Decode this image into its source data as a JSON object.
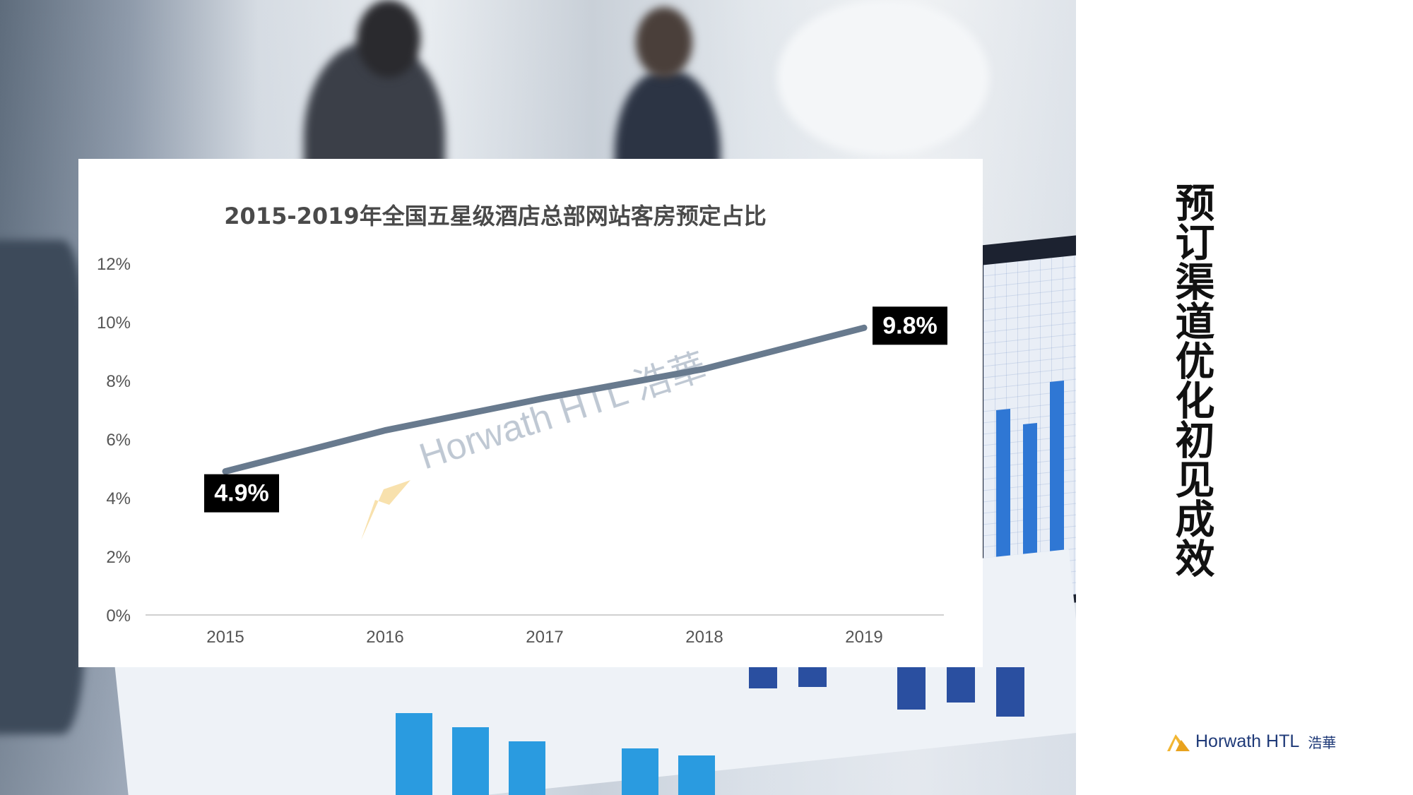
{
  "slide": {
    "side_title": "预订渠道优化初见成效",
    "footer": {
      "brand": "Horwath HTL",
      "brand_cn": "浩華"
    },
    "watermark": "Horwath HTL 浩華"
  },
  "colors": {
    "line": "#687a8e",
    "label_bg": "#000000",
    "label_text": "#ffffff",
    "title_text": "#4a4a4a",
    "axis_text": "#555555",
    "axis_line": "#d0d0d0",
    "logo_gold": "#f2b632",
    "logo_blue": "#1f3a78"
  },
  "chart_data": {
    "type": "line",
    "title": "2015-2019年全国五星级酒店总部网站客房预定占比",
    "categories": [
      "2015",
      "2016",
      "2017",
      "2018",
      "2019"
    ],
    "series": [
      {
        "values": [
          4.9,
          6.3,
          7.4,
          8.4,
          9.8
        ]
      }
    ],
    "data_labels": [
      {
        "index": 0,
        "text": "4.9%"
      },
      {
        "index": 4,
        "text": "9.8%"
      }
    ],
    "ylim": [
      0,
      12
    ],
    "yticks": [
      "0%",
      "2%",
      "4%",
      "6%",
      "8%",
      "10%",
      "12%"
    ],
    "xlabel": "",
    "ylabel": "",
    "grid": false,
    "legend": "none"
  }
}
